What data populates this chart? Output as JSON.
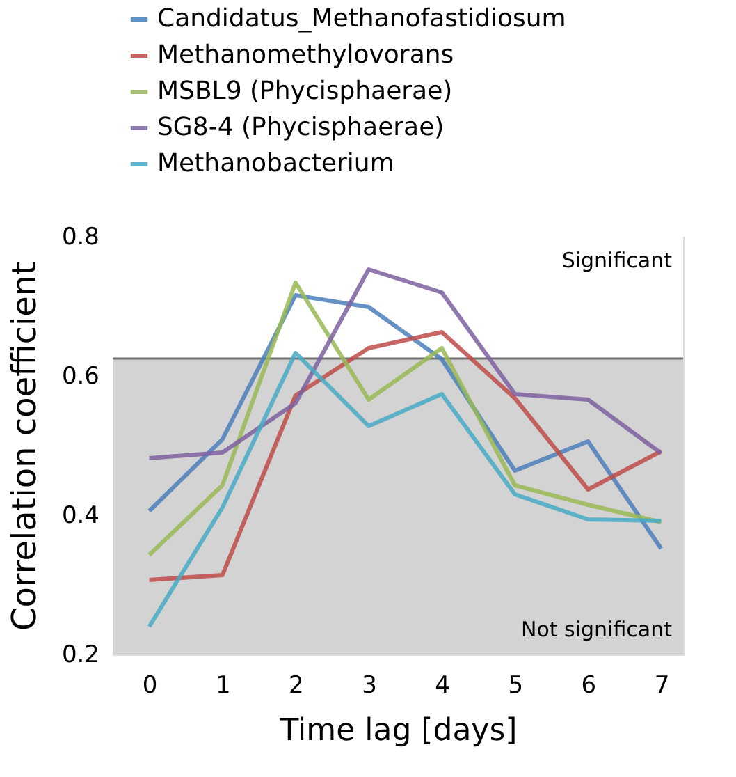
{
  "chart_data": {
    "type": "line",
    "xlabel": "Time lag [days]",
    "ylabel": "Correlation coefficient",
    "x": [
      0,
      1,
      2,
      3,
      4,
      5,
      6,
      7
    ],
    "xlim": [
      -0.5,
      7.3
    ],
    "xticks": [
      0,
      1,
      2,
      3,
      4,
      5,
      6,
      7
    ],
    "ylim": [
      0.2,
      0.8
    ],
    "yticks": [
      0.2,
      0.4,
      0.6,
      0.8
    ],
    "legend": "top left",
    "marker": "none",
    "line_style": "solid",
    "bands": [
      {
        "axis": "y",
        "from": 0.2,
        "to": 0.625,
        "label": "Not significant",
        "color": "#d3d3d3"
      },
      {
        "axis": "y",
        "from": 0.625,
        "to": 0.8,
        "label": "Significant",
        "color": "#ffffff"
      }
    ],
    "ref_lines": [
      {
        "axis": "y",
        "value": 0.625,
        "label": null,
        "color": "#707070"
      }
    ],
    "series": [
      {
        "name": "Candidatus_Methanofastidiosum",
        "color": "#4a7ebb",
        "values": [
          0.406,
          0.509,
          0.716,
          0.699,
          0.624,
          0.464,
          0.506,
          0.352
        ]
      },
      {
        "name": "Methanomethylovorans",
        "color": "#be4b48",
        "values": [
          0.307,
          0.314,
          0.572,
          0.64,
          0.663,
          0.568,
          0.437,
          0.492
        ]
      },
      {
        "name": "MSBL9 (Phycisphaerae)",
        "color": "#98b954",
        "values": [
          0.343,
          0.443,
          0.734,
          0.566,
          0.64,
          0.443,
          0.415,
          0.39
        ]
      },
      {
        "name": "SG8-4 (Phycisphaerae)",
        "color": "#7d60a0",
        "values": [
          0.482,
          0.49,
          0.561,
          0.753,
          0.72,
          0.574,
          0.566,
          0.489
        ]
      },
      {
        "name": "Methanobacterium",
        "color": "#46aac5",
        "values": [
          0.24,
          0.411,
          0.633,
          0.528,
          0.574,
          0.43,
          0.394,
          0.392
        ]
      }
    ]
  }
}
